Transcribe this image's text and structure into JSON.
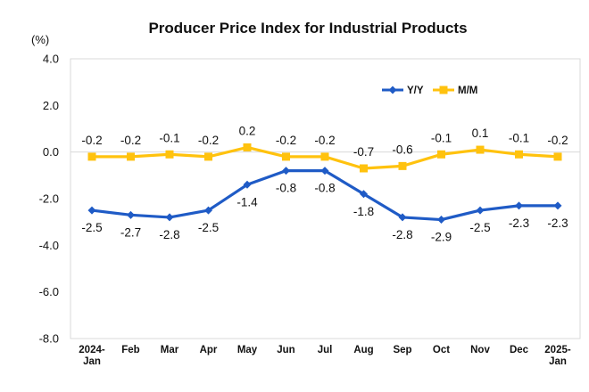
{
  "chart_data": {
    "type": "line",
    "title": "Producer Price Index for Industrial Products",
    "unit_label": "(%)",
    "categories": [
      [
        "2024-",
        "Jan"
      ],
      [
        "Feb"
      ],
      [
        "Mar"
      ],
      [
        "Apr"
      ],
      [
        "May"
      ],
      [
        "Jun"
      ],
      [
        "Jul"
      ],
      [
        "Aug"
      ],
      [
        "Sep"
      ],
      [
        "Oct"
      ],
      [
        "Nov"
      ],
      [
        "Dec"
      ],
      [
        "2025-",
        "Jan"
      ]
    ],
    "ylim": [
      -8.0,
      4.0
    ],
    "yticks": [
      "4.0",
      "2.0",
      "0.0",
      "-2.0",
      "-4.0",
      "-6.0",
      "-8.0"
    ],
    "ytick_values": [
      4,
      2,
      0,
      -2,
      -4,
      -6,
      -8
    ],
    "grid": false,
    "legend_position": "top-right",
    "series": [
      {
        "name": "Y/Y",
        "color": "#1F5BC6",
        "marker": "diamond",
        "values": [
          -2.5,
          -2.7,
          -2.8,
          -2.5,
          -1.4,
          -0.8,
          -0.8,
          -1.8,
          -2.8,
          -2.9,
          -2.5,
          -2.3,
          -2.3
        ],
        "labels": [
          "-2.5",
          "-2.7",
          "-2.8",
          "-2.5",
          "-1.4",
          "-0.8",
          "-0.8",
          "-1.8",
          "-2.8",
          "-2.9",
          "-2.5",
          "-2.3",
          "-2.3"
        ]
      },
      {
        "name": "M/M",
        "color": "#FFC20E",
        "marker": "square",
        "values": [
          -0.2,
          -0.2,
          -0.1,
          -0.2,
          0.2,
          -0.2,
          -0.2,
          -0.7,
          -0.6,
          -0.1,
          0.1,
          -0.1,
          -0.2
        ],
        "labels": [
          "-0.2",
          "-0.2",
          "-0.1",
          "-0.2",
          "0.2",
          "-0.2",
          "-0.2",
          "-0.7",
          "-0.6",
          "-0.1",
          "0.1",
          "-0.1",
          "-0.2"
        ]
      }
    ]
  }
}
